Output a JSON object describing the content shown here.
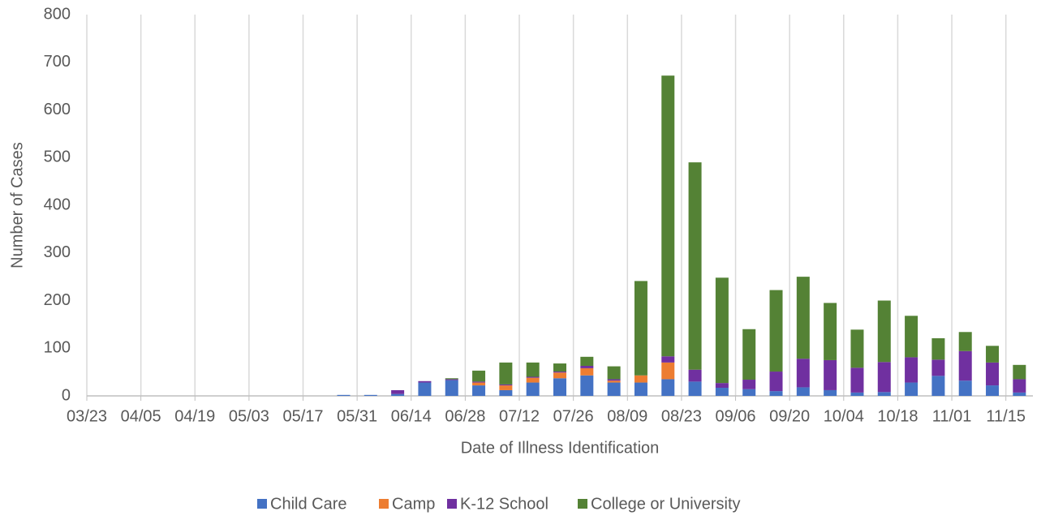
{
  "chart_data": {
    "type": "stacked_bar",
    "x_label": "Date of Illness Identification",
    "y_label": "Number of Cases",
    "categories": [
      "03/23",
      null,
      "04/05",
      null,
      "04/19",
      null,
      "05/03",
      null,
      "05/17",
      null,
      "05/31",
      null,
      "06/14",
      null,
      "06/28",
      null,
      "07/12",
      null,
      "07/26",
      null,
      "08/09",
      null,
      "08/23",
      null,
      "09/06",
      null,
      "09/20",
      null,
      "10/04",
      null,
      "10/18",
      null,
      "11/01",
      null,
      "11/15"
    ],
    "series": [
      {
        "name": "Child Care",
        "color": "#4472c4",
        "values": [
          0,
          0,
          0,
          0,
          0,
          0,
          0,
          0,
          0,
          2,
          2,
          4,
          28,
          33,
          22,
          12,
          28,
          37,
          43,
          28,
          28,
          35,
          30,
          17,
          14,
          10,
          18,
          12,
          7,
          8,
          28,
          42,
          32,
          22,
          7
        ]
      },
      {
        "name": "Camp",
        "color": "#ed7d31",
        "values": [
          0,
          0,
          0,
          0,
          0,
          0,
          0,
          0,
          0,
          0,
          0,
          0,
          0,
          0,
          6,
          10,
          10,
          12,
          15,
          4,
          15,
          35,
          0,
          0,
          0,
          0,
          0,
          0,
          0,
          0,
          0,
          0,
          0,
          0,
          0
        ]
      },
      {
        "name": "K-12 School",
        "color": "#7030a0",
        "values": [
          0,
          0,
          0,
          0,
          0,
          0,
          0,
          0,
          0,
          0,
          0,
          8,
          3,
          2,
          2,
          2,
          2,
          2,
          5,
          3,
          0,
          13,
          25,
          10,
          20,
          41,
          60,
          63,
          52,
          63,
          53,
          34,
          62,
          48,
          28
        ]
      },
      {
        "name": "College or University",
        "color": "#548235",
        "values": [
          0,
          0,
          0,
          0,
          0,
          0,
          0,
          0,
          0,
          0,
          0,
          0,
          0,
          2,
          23,
          46,
          30,
          17,
          19,
          27,
          198,
          589,
          435,
          221,
          106,
          171,
          172,
          120,
          80,
          129,
          87,
          45,
          40,
          35,
          30
        ]
      }
    ],
    "ylim": [
      0,
      800
    ],
    "yticks": [
      0,
      100,
      200,
      300,
      400,
      500,
      600,
      700,
      800
    ],
    "grid": "x",
    "legend": "bottom"
  }
}
